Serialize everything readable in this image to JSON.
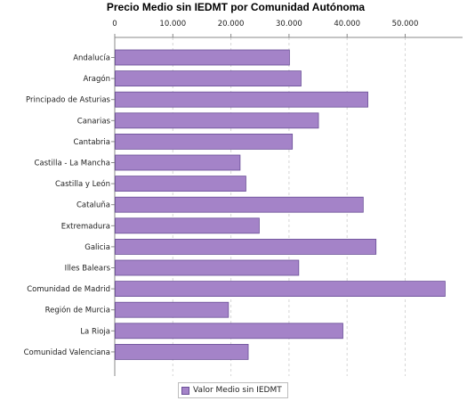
{
  "chart_data": {
    "type": "bar",
    "orientation": "horizontal",
    "title": "Precio Medio sin IEDMT por Comunidad Autónoma",
    "xlabel": "",
    "ylabel": "",
    "xlim": [
      0,
      58500
    ],
    "x_ticks": [
      0,
      10000,
      20000,
      30000,
      40000,
      50000
    ],
    "x_tick_labels": [
      "0",
      "10.000",
      "20.000",
      "30.000",
      "40.000",
      "50.000"
    ],
    "axis_position": "top",
    "grid": "vertical dashed",
    "categories": [
      "Andalucía",
      "Aragón",
      "Principado de Asturias",
      "Canarias",
      "Cantabria",
      "Castilla - La Mancha",
      "Castilla y León",
      "Cataluña",
      "Extremadura",
      "Galicia",
      "Illes Balears",
      "Comunidad de Madrid",
      "Región de Murcia",
      "La Rioja",
      "Comunidad Valenciana"
    ],
    "series": [
      {
        "name": "Valor Medio sin IEDMT",
        "color": "#a483c8",
        "values": [
          30000,
          32000,
          43500,
          35000,
          30500,
          21500,
          22500,
          42700,
          24800,
          44900,
          31600,
          56800,
          19500,
          39200,
          22900
        ]
      }
    ],
    "legend_position": "bottom-center"
  }
}
